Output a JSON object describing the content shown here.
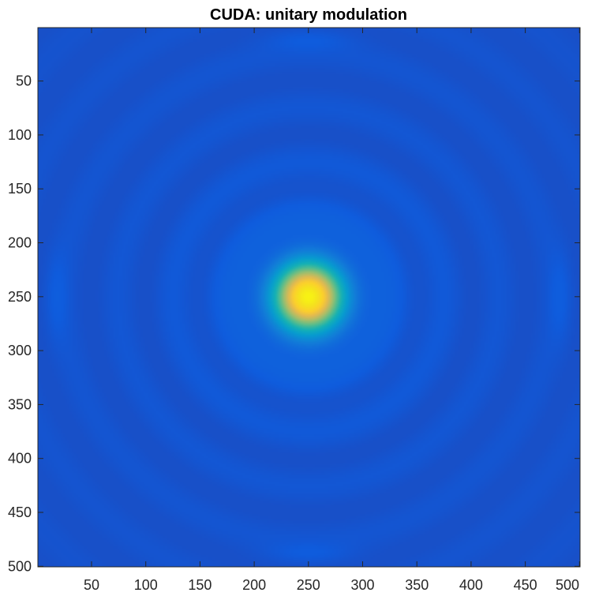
{
  "chart_data": {
    "type": "heatmap",
    "title": "CUDA: unitary modulation",
    "xlabel": "",
    "ylabel": "",
    "x_range": [
      1,
      500
    ],
    "y_range": [
      1,
      500
    ],
    "y_direction": "reversed",
    "x_ticks": [
      50,
      100,
      150,
      200,
      250,
      300,
      350,
      400,
      450,
      500
    ],
    "y_ticks": [
      50,
      100,
      150,
      200,
      250,
      300,
      350,
      400,
      450,
      500
    ],
    "x_tick_labels": [
      "50",
      "100",
      "150",
      "200",
      "250",
      "300",
      "350",
      "400",
      "450",
      "500"
    ],
    "y_tick_labels": [
      "50",
      "100",
      "150",
      "200",
      "250",
      "300",
      "350",
      "400",
      "450",
      "500"
    ],
    "grid": false,
    "colormap": "parula",
    "pattern": "concentric rings centered at (250, 250)",
    "peak_center": [
      250,
      250
    ],
    "colors": {
      "background_low": "#3a2fae",
      "ring": "#4a45e0",
      "halo": "#3d6cf2",
      "mid": "#1fb5b0",
      "high": "#f5b53a",
      "peak": "#f8f020"
    }
  }
}
